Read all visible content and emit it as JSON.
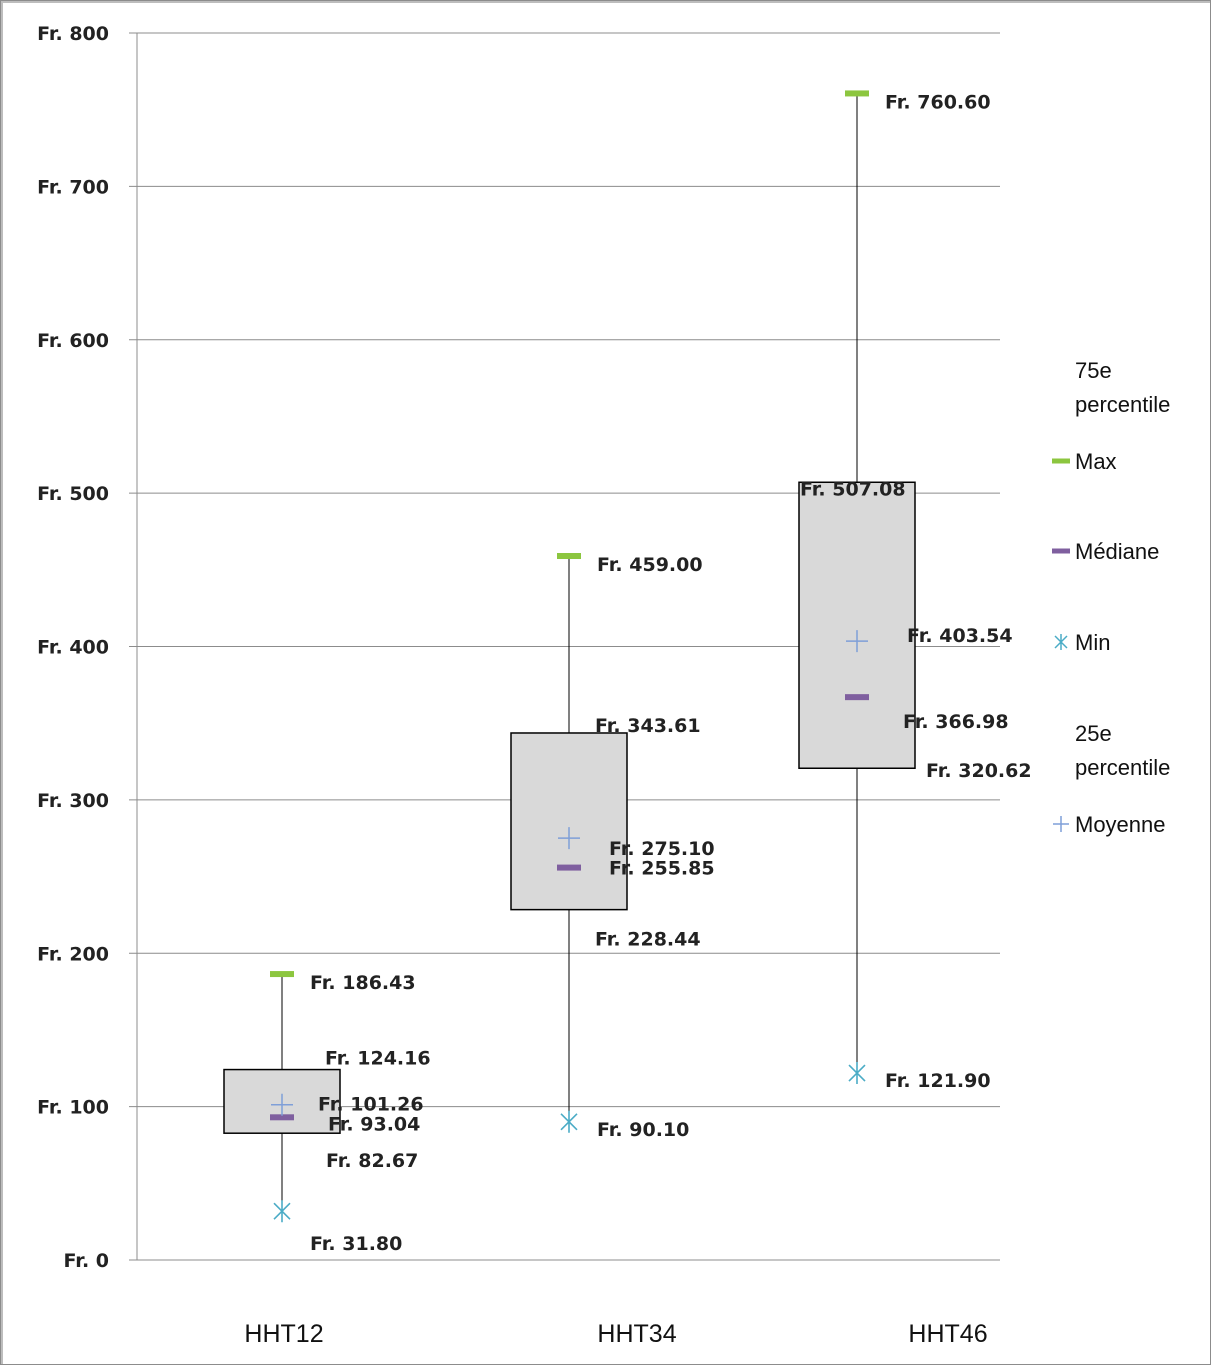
{
  "chart_data": {
    "type": "boxplot",
    "categories": [
      "HHT12",
      "HHT34",
      "HHT46"
    ],
    "ylim": [
      0,
      800
    ],
    "yticks": [
      0,
      100,
      200,
      300,
      400,
      500,
      600,
      700,
      800
    ],
    "ytick_labels": [
      "Fr. 0",
      "Fr. 100",
      "Fr. 200",
      "Fr. 300",
      "Fr. 400",
      "Fr. 500",
      "Fr. 600",
      "Fr. 700",
      "Fr. 800"
    ],
    "grid": true,
    "legend_position": "right",
    "series": [
      {
        "key": "q3",
        "name": "75e percentile",
        "values": [
          124.16,
          343.61,
          507.08
        ],
        "labels": [
          "Fr. 124.16",
          "Fr. 343.61",
          "Fr. 507.08"
        ]
      },
      {
        "key": "max",
        "name": "Max",
        "color": "#8cc63f",
        "values": [
          186.43,
          459.0,
          760.6
        ],
        "labels": [
          "Fr. 186.43",
          "Fr. 459.00",
          "Fr. 760.60"
        ]
      },
      {
        "key": "median",
        "name": "Médiane",
        "color": "#7f5f9f",
        "values": [
          93.04,
          255.85,
          366.98
        ],
        "labels": [
          "Fr. 93.04",
          "Fr. 255.85",
          "Fr. 366.98"
        ]
      },
      {
        "key": "min",
        "name": "Min",
        "color": "#4bacc6",
        "values": [
          31.8,
          90.1,
          121.9
        ],
        "labels": [
          "Fr. 31.80",
          "Fr. 90.10",
          "Fr. 121.90"
        ]
      },
      {
        "key": "q1",
        "name": "25e percentile",
        "values": [
          82.67,
          228.44,
          320.62
        ],
        "labels": [
          "Fr. 82.67",
          "Fr. 228.44",
          "Fr. 320.62"
        ]
      },
      {
        "key": "mean",
        "name": "Moyenne",
        "color": "#7f9fd8",
        "values": [
          101.26,
          275.1,
          403.54
        ],
        "labels": [
          "Fr. 101.26",
          "Fr. 275.10",
          "Fr. 403.54"
        ]
      }
    ],
    "colors": {
      "box_fill": "#d9d9d9",
      "box_stroke": "#000000",
      "grid": "#8c8c8c"
    }
  }
}
